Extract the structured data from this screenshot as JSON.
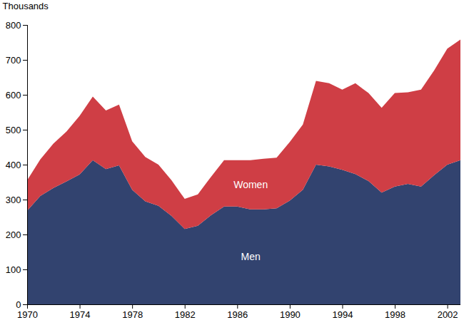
{
  "chart_data": {
    "type": "area",
    "stacked": true,
    "y_label": "Thousands",
    "x": [
      1970,
      1971,
      1972,
      1973,
      1974,
      1975,
      1976,
      1977,
      1978,
      1979,
      1980,
      1981,
      1982,
      1983,
      1984,
      1985,
      1986,
      1987,
      1988,
      1989,
      1990,
      1991,
      1992,
      1993,
      1994,
      1995,
      1996,
      1997,
      1998,
      1999,
      2000,
      2001,
      2002,
      2003
    ],
    "series": [
      {
        "name": "Men",
        "color": "#32436f",
        "values": [
          268,
          310,
          333,
          352,
          372,
          413,
          387,
          398,
          328,
          295,
          282,
          253,
          216,
          225,
          255,
          280,
          280,
          272,
          272,
          275,
          297,
          328,
          400,
          395,
          385,
          373,
          353,
          320,
          337,
          345,
          337,
          370,
          400,
          413
        ]
      },
      {
        "name": "Women",
        "color": "#cf3e45",
        "values": [
          87,
          105,
          127,
          143,
          168,
          182,
          168,
          174,
          139,
          127,
          118,
          102,
          86,
          90,
          110,
          133,
          133,
          141,
          145,
          145,
          168,
          187,
          240,
          238,
          230,
          260,
          252,
          243,
          268,
          262,
          278,
          300,
          332,
          345
        ]
      }
    ],
    "xlim": [
      1970,
      2003
    ],
    "xticks": [
      1970,
      1974,
      1978,
      1982,
      1986,
      1990,
      1994,
      1998,
      2002
    ],
    "ylim": [
      0,
      800
    ],
    "yticks": [
      0,
      100,
      200,
      300,
      400,
      500,
      600,
      700,
      800
    ]
  }
}
